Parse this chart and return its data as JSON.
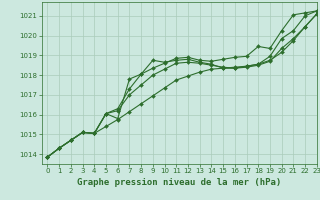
{
  "background_color": "#cce8df",
  "grid_color": "#aaccbb",
  "line_color": "#2d6e2d",
  "title": "Graphe pression niveau de la mer (hPa)",
  "xlim": [
    -0.5,
    23
  ],
  "ylim": [
    1013.5,
    1021.7
  ],
  "yticks": [
    1014,
    1015,
    1016,
    1017,
    1018,
    1019,
    1020,
    1021
  ],
  "xticks": [
    0,
    1,
    2,
    3,
    4,
    5,
    6,
    7,
    8,
    9,
    10,
    11,
    12,
    13,
    14,
    15,
    16,
    17,
    18,
    19,
    20,
    21,
    22,
    23
  ],
  "series": [
    [
      1013.85,
      1014.3,
      1014.7,
      1015.1,
      1015.05,
      1016.05,
      1015.8,
      1017.8,
      1018.05,
      1018.35,
      1018.6,
      1018.85,
      1018.9,
      1018.75,
      1018.7,
      1018.8,
      1018.9,
      1018.95,
      1019.45,
      1019.35,
      1020.25,
      1021.05,
      1021.15,
      1021.25
    ],
    [
      1013.85,
      1014.3,
      1014.7,
      1015.1,
      1015.05,
      1016.05,
      1016.3,
      1017.3,
      1018.05,
      1018.75,
      1018.65,
      1018.75,
      1018.8,
      1018.65,
      1018.55,
      1018.35,
      1018.35,
      1018.45,
      1018.55,
      1018.95,
      1019.85,
      1020.25,
      1021.0,
      1021.25
    ],
    [
      1013.85,
      1014.3,
      1014.7,
      1015.1,
      1015.05,
      1016.05,
      1016.2,
      1017.0,
      1017.5,
      1018.0,
      1018.3,
      1018.6,
      1018.65,
      1018.6,
      1018.5,
      1018.4,
      1018.35,
      1018.4,
      1018.5,
      1018.7,
      1019.35,
      1019.85,
      1020.45,
      1021.1
    ],
    [
      1013.85,
      1014.3,
      1014.7,
      1015.1,
      1015.05,
      1015.4,
      1015.75,
      1016.15,
      1016.55,
      1016.95,
      1017.35,
      1017.75,
      1017.95,
      1018.15,
      1018.3,
      1018.35,
      1018.4,
      1018.45,
      1018.55,
      1018.75,
      1019.15,
      1019.75,
      1020.45,
      1021.1
    ]
  ],
  "marker": "D",
  "markersize": 2.0,
  "linewidth": 0.8,
  "title_fontsize": 6.5,
  "tick_fontsize": 5.0,
  "title_color": "#2d6e2d",
  "tick_color": "#2d6e2d",
  "spine_color": "#2d6e2d"
}
